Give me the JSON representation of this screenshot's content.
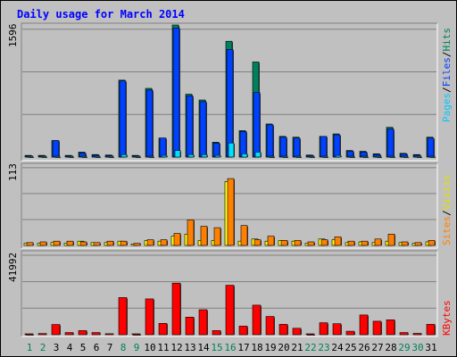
{
  "title": "Daily usage for March 2014",
  "colors": {
    "background": "#C0C0C0",
    "grid": "#808080",
    "title": "#0000FF",
    "weekday_label": "#000000",
    "weekend_label": "#00805C",
    "hits": "#00805C",
    "files": "#0040FF",
    "pages": "#00E0FF",
    "visits": "#FFFF00",
    "sites": "#FF8000",
    "kbytes": "#FF0000",
    "separator": "#000000"
  },
  "right_labels": {
    "top": [
      {
        "text": "Pages",
        "color": "#00C8FF"
      },
      {
        "text": "/",
        "color": "#000000"
      },
      {
        "text": "Files",
        "color": "#0040FF"
      },
      {
        "text": "/",
        "color": "#000000"
      },
      {
        "text": "Hits",
        "color": "#00805C"
      }
    ],
    "mid": [
      {
        "text": "Sites",
        "color": "#FF8000"
      },
      {
        "text": "/",
        "color": "#000000"
      },
      {
        "text": "Visits",
        "color": "#E0E000"
      }
    ],
    "bot": [
      {
        "text": "KBytes",
        "color": "#FF0000"
      }
    ]
  },
  "chart_data": {
    "type": "bar",
    "title": "Daily usage for March 2014",
    "categories": [
      "1",
      "2",
      "3",
      "4",
      "5",
      "6",
      "7",
      "8",
      "9",
      "10",
      "11",
      "12",
      "13",
      "14",
      "15",
      "16",
      "17",
      "18",
      "19",
      "20",
      "21",
      "22",
      "23",
      "24",
      "25",
      "26",
      "27",
      "28",
      "29",
      "30",
      "31"
    ],
    "weekend_days": [
      "1",
      "2",
      "8",
      "9",
      "15",
      "16",
      "22",
      "23",
      "29",
      "30"
    ],
    "panels": [
      {
        "id": "hits_files_pages",
        "ymax_label": "1596",
        "ylim": [
          0,
          1596
        ],
        "series": [
          {
            "name": "Hits",
            "color": "#00805C",
            "values": [
              20,
              20,
              200,
              20,
              60,
              30,
              25,
              930,
              20,
              830,
              230,
              1596,
              760,
              690,
              180,
              1400,
              320,
              1150,
              400,
              250,
              240,
              25,
              250,
              280,
              80,
              70,
              40,
              360,
              45,
              30,
              240
            ]
          },
          {
            "name": "Files",
            "color": "#0040FF",
            "values": [
              15,
              15,
              200,
              15,
              50,
              25,
              20,
              920,
              15,
              810,
              230,
              1560,
              740,
              670,
              170,
              1300,
              310,
              780,
              390,
              240,
              230,
              20,
              250,
              270,
              70,
              60,
              35,
              340,
              40,
              25,
              230
            ]
          },
          {
            "name": "Pages",
            "color": "#00E0FF",
            "values": [
              5,
              5,
              10,
              5,
              10,
              5,
              5,
              30,
              5,
              10,
              20,
              80,
              30,
              30,
              20,
              170,
              40,
              60,
              10,
              10,
              10,
              5,
              10,
              20,
              10,
              10,
              5,
              10,
              10,
              10,
              10
            ]
          }
        ]
      },
      {
        "id": "visits_sites",
        "ymax_label": "113",
        "ylim": [
          0,
          113
        ],
        "series": [
          {
            "name": "Visits",
            "color": "#FFFF00",
            "values": [
              3,
              3,
              4,
              3,
              6,
              4,
              4,
              6,
              2,
              7,
              6,
              13,
              16,
              7,
              7,
              90,
              6,
              9,
              6,
              7,
              6,
              3,
              9,
              8,
              4,
              5,
              4,
              6,
              4,
              3,
              5
            ]
          },
          {
            "name": "Sites",
            "color": "#FF8000",
            "values": [
              4,
              5,
              6,
              6,
              5,
              4,
              6,
              6,
              3,
              8,
              8,
              17,
              36,
              27,
              25,
              94,
              28,
              8,
              13,
              7,
              7,
              5,
              8,
              12,
              6,
              6,
              9,
              16,
              5,
              4,
              7
            ]
          }
        ]
      },
      {
        "id": "kbytes",
        "ymax_label": "41992",
        "ylim": [
          0,
          41992
        ],
        "series": [
          {
            "name": "KBytes",
            "color": "#FF0000",
            "values": [
              400,
              600,
              5200,
              1100,
              2100,
              1100,
              500,
              19000,
              400,
              18300,
              5800,
              26400,
              9000,
              12800,
              2100,
              25300,
              4400,
              15100,
              9300,
              5300,
              3300,
              400,
              6100,
              5600,
              1800,
              10100,
              6900,
              7600,
              1100,
              700,
              5300
            ]
          }
        ]
      }
    ]
  }
}
